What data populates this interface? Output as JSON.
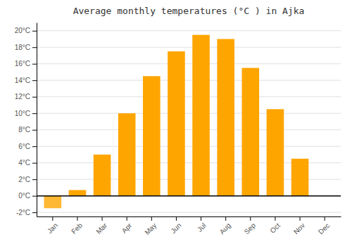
{
  "chart_data": {
    "type": "bar",
    "title": "Average monthly temperatures (°C ) in Ajka",
    "categories": [
      "Jan",
      "Feb",
      "Mar",
      "Apr",
      "May",
      "Jun",
      "Jul",
      "Aug",
      "Sep",
      "Oct",
      "Nov",
      "Dec"
    ],
    "values": [
      -1.5,
      0.7,
      5.0,
      10.0,
      14.5,
      17.5,
      19.5,
      19.0,
      15.5,
      10.5,
      4.5,
      0.0
    ],
    "colors": [
      "#FFB833",
      "#FFA500",
      "#FFA500",
      "#FFA500",
      "#FFA500",
      "#FFA500",
      "#FFA500",
      "#FFA500",
      "#FFA500",
      "#FFA500",
      "#FFA500",
      "#FFA500"
    ],
    "ylim": [
      -2.5,
      21
    ],
    "yticks": [
      {
        "value": -2,
        "label": "-2°C"
      },
      {
        "value": 0,
        "label": "0°C"
      },
      {
        "value": 2,
        "label": "2°C"
      },
      {
        "value": 4,
        "label": "4°C"
      },
      {
        "value": 6,
        "label": "6°C"
      },
      {
        "value": 8,
        "label": "8°C"
      },
      {
        "value": 10,
        "label": "10°C"
      },
      {
        "value": 12,
        "label": "12°C"
      },
      {
        "value": 14,
        "label": "14°C"
      },
      {
        "value": 16,
        "label": "16°C"
      },
      {
        "value": 18,
        "label": "18°C"
      },
      {
        "value": 20,
        "label": "20°C"
      }
    ],
    "grid": true
  }
}
